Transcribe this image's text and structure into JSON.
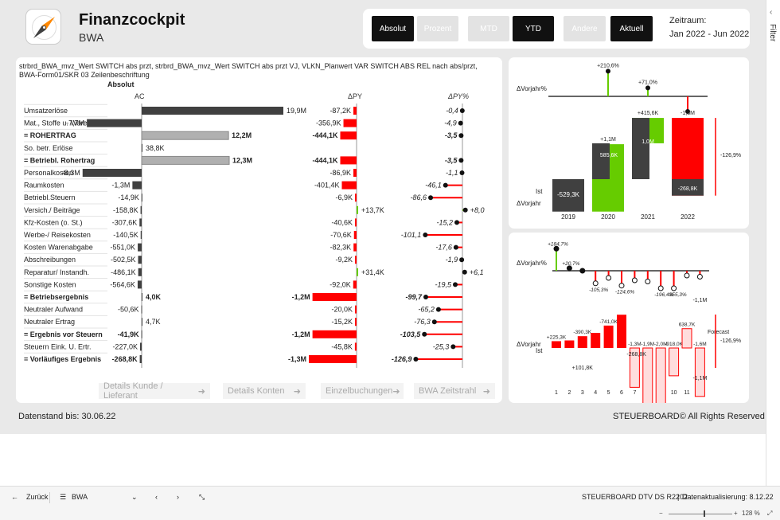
{
  "header": {
    "title": "Finanzcockpit",
    "subtitle": "BWA"
  },
  "buttons": [
    {
      "label": "Absolut",
      "state": "on"
    },
    {
      "label": "Prozent",
      "state": "off"
    },
    {
      "label": "MTD",
      "state": "off"
    },
    {
      "label": "YTD",
      "state": "on"
    },
    {
      "label": "Andere",
      "state": "off"
    },
    {
      "label": "Aktuell",
      "state": "on"
    }
  ],
  "zeitraum": {
    "label": "Zeitraum:",
    "value": "Jan 2022 - Jun 2022"
  },
  "filter_label": "Filter",
  "table": {
    "description": "strbrd_BWA_mvz_Wert SWITCH abs przt, strbrd_BWA_mvz_Wert SWITCH abs przt VJ, VLKN_Planwert VAR SWITCH ABS REL nach abs/przt, BWA-Form01/SKR 03 Zeilenbeschriftung",
    "group_header": "Absolut",
    "columns": {
      "ac": "AC",
      "dpy": "ΔPY",
      "dpyp": "ΔPY%"
    },
    "rows": [
      {
        "label": "Umsatzerlöse",
        "bold": false,
        "ac": 19.9,
        "ac_label": "19,9M",
        "dpy": -87.2,
        "dpy_label": "-87,2K",
        "dpyp": -0.4,
        "dpyp_label": "-0,4"
      },
      {
        "label": "Mat., Stoffe u. Waren",
        "bold": false,
        "ac": -7.7,
        "ac_label": "-7,7M",
        "dpy": -356.9,
        "dpy_label": "-356,9K",
        "dpyp": -4.9,
        "dpyp_label": "-4,9"
      },
      {
        "label": "= ROHERTRAG",
        "bold": true,
        "ac": 12.2,
        "ac_label": "12,2M",
        "dpy": -444.1,
        "dpy_label": "-444,1K",
        "dpyp": -3.5,
        "dpyp_label": "-3,5",
        "subtotal": true
      },
      {
        "label": "So. betr. Erlöse",
        "bold": false,
        "ac": 0.0388,
        "ac_label": "38,8K",
        "dpy": 0,
        "dpy_label": "",
        "dpyp": 0,
        "dpyp_label": ""
      },
      {
        "label": "= Betriebl. Rohertrag",
        "bold": true,
        "ac": 12.3,
        "ac_label": "12,3M",
        "dpy": -444.1,
        "dpy_label": "-444,1K",
        "dpyp": -3.5,
        "dpyp_label": "-3,5",
        "subtotal": true
      },
      {
        "label": "Personalkosten",
        "bold": false,
        "ac": -8.3,
        "ac_label": "-8,3M",
        "dpy": -86.9,
        "dpy_label": "-86,9K",
        "dpyp": -1.1,
        "dpyp_label": "-1,1"
      },
      {
        "label": "Raumkosten",
        "bold": false,
        "ac": -1.3,
        "ac_label": "-1,3M",
        "dpy": -401.4,
        "dpy_label": "-401,4K",
        "dpyp": -46.1,
        "dpyp_label": "-46,1"
      },
      {
        "label": "Betriebl.Steuern",
        "bold": false,
        "ac": -0.0149,
        "ac_label": "-14,9K",
        "dpy": -6.9,
        "dpy_label": "-6,9K",
        "dpyp": -86.6,
        "dpyp_label": "-86,6"
      },
      {
        "label": "Versich./ Beiträge",
        "bold": false,
        "ac": -0.1589,
        "ac_label": "-158,8K",
        "dpy": 13.7,
        "dpy_label": "+13,7K",
        "dpyp": 8.0,
        "dpyp_label": "+8,0"
      },
      {
        "label": "Kfz-Kosten (o. St.)",
        "bold": false,
        "ac": -0.3076,
        "ac_label": "-307,6K",
        "dpy": -40.6,
        "dpy_label": "-40,6K",
        "dpyp": -15.2,
        "dpyp_label": "-15,2"
      },
      {
        "label": "Werbe-/ Reisekosten",
        "bold": false,
        "ac": -0.1405,
        "ac_label": "-140,5K",
        "dpy": -70.6,
        "dpy_label": "-70,6K",
        "dpyp": -101.1,
        "dpyp_label": "-101,1"
      },
      {
        "label": "Kosten Warenabgabe",
        "bold": false,
        "ac": -0.551,
        "ac_label": "-551,0K",
        "dpy": -82.3,
        "dpy_label": "-82,3K",
        "dpyp": -17.6,
        "dpyp_label": "-17,6"
      },
      {
        "label": "Abschreibungen",
        "bold": false,
        "ac": -0.5025,
        "ac_label": "-502,5K",
        "dpy": -9.2,
        "dpy_label": "-9,2K",
        "dpyp": -1.9,
        "dpyp_label": "-1,9"
      },
      {
        "label": "Reparatur/ Instandh.",
        "bold": false,
        "ac": -0.4861,
        "ac_label": "-486,1K",
        "dpy": 31.4,
        "dpy_label": "+31,4K",
        "dpyp": 6.1,
        "dpyp_label": "+6,1"
      },
      {
        "label": "Sonstige Kosten",
        "bold": false,
        "ac": -0.5646,
        "ac_label": "-564,6K",
        "dpy": -92.0,
        "dpy_label": "-92,0K",
        "dpyp": -19.5,
        "dpyp_label": "-19,5"
      },
      {
        "label": "= Betriebsergebnis",
        "bold": true,
        "ac": 0.004,
        "ac_label": "4,0K",
        "dpy": -1200,
        "dpy_label": "-1,2M",
        "dpyp": -99.7,
        "dpyp_label": "-99,7"
      },
      {
        "label": "Neutraler Aufwand",
        "bold": false,
        "ac": -0.0506,
        "ac_label": "-50,6K",
        "dpy": -20.0,
        "dpy_label": "-20,0K",
        "dpyp": -65.2,
        "dpyp_label": "-65,2"
      },
      {
        "label": "Neutraler Ertrag",
        "bold": false,
        "ac": 0.0047,
        "ac_label": "4,7K",
        "dpy": -15.2,
        "dpy_label": "-15,2K",
        "dpyp": -76.3,
        "dpyp_label": "-76,3"
      },
      {
        "label": "= Ergebnis vor Steuern",
        "bold": true,
        "ac": -0.0419,
        "ac_label": "-41,9K",
        "dpy": -1200,
        "dpy_label": "-1,2M",
        "dpyp": -103.5,
        "dpyp_label": "-103,5"
      },
      {
        "label": "Steuern Eink. U. Ertr.",
        "bold": false,
        "ac": -0.227,
        "ac_label": "-227,0K",
        "dpy": -45.8,
        "dpy_label": "-45,8K",
        "dpyp": -25.3,
        "dpyp_label": "-25,3"
      },
      {
        "label": "= Vorläufiges Ergebnis",
        "bold": true,
        "ac": -0.2688,
        "ac_label": "-268,8K",
        "dpy": -1300,
        "dpy_label": "-1,3M",
        "dpyp": -126.9,
        "dpyp_label": "-126,9"
      }
    ]
  },
  "nav_buttons": [
    {
      "label": "Details Kunde / Lieferant"
    },
    {
      "label": "Details Konten"
    },
    {
      "label": "Einzelbuchungen"
    },
    {
      "label": "BWA Zeitstrahl"
    }
  ],
  "chart_data": [
    {
      "type": "bar",
      "title": "",
      "categories": [
        "2019",
        "2020",
        "2021",
        "2022"
      ],
      "row_labels": {
        "top": "ΔVorjahr%",
        "ist": "Ist",
        "bottom": "ΔVorjahr"
      },
      "ist_values": [
        -529.3,
        585.6,
        1000,
        -268.8
      ],
      "ist_labels": [
        "-529,3K",
        "585,6K",
        "1,0M",
        "-268,8K"
      ],
      "delta_values": [
        null,
        1100,
        415.6,
        -1300
      ],
      "delta_labels": [
        "",
        "+1,1M",
        "+415,6K",
        "-1,3M"
      ],
      "delta_pct": [
        null,
        210.6,
        71.0,
        -126.9
      ],
      "delta_pct_labels": [
        "",
        "+210,6%",
        "+71,0%",
        "-126,9%"
      ],
      "side_label": "-126,9%",
      "colors": {
        "actual": "#404040",
        "positive": "#66cc00",
        "negative": "#ff0000"
      }
    },
    {
      "type": "bar",
      "title": "",
      "categories": [
        "1",
        "2",
        "3",
        "4",
        "5",
        "6",
        "7",
        "8",
        "9",
        "10",
        "11",
        "12"
      ],
      "row_labels": {
        "top": "ΔVorjahr%",
        "bottom": "ΔVorjahr",
        "ist": "Ist"
      },
      "pct_labels": [
        "+184,7%",
        "+20,7%",
        "",
        "-105,3%",
        "",
        "-124,6%",
        "",
        "",
        "-196,4%",
        "-355,3%",
        "",
        ""
      ],
      "pct_values": [
        184.7,
        20.7,
        0,
        -105.3,
        -60,
        -124.6,
        -80,
        -90,
        -196.4,
        -355.3,
        -40,
        -50
      ],
      "cum_labels": [
        "+225,3K",
        "",
        "-390,3K",
        "",
        "-741,0K",
        "",
        "-1,3M",
        "-1,9M",
        "-2,0M",
        "-918,0K",
        "638,7K",
        "-1,6M"
      ],
      "extra_labels": {
        "m3_delta": "+101,8K",
        "m6": "-268,8K",
        "m12_top": "-1,1M",
        "m12_low": "-1,1M",
        "forecast": "Forecast",
        "side": "-126,9%"
      },
      "colors": {
        "actual": "#404040",
        "positive": "#66cc00",
        "negative": "#ff0000"
      }
    }
  ],
  "footer": {
    "stand": "Datenstand bis:  30.06.22",
    "copyright": "STEUERBOARD© All Rights Reserved"
  },
  "bottombar": {
    "back": "Zurück",
    "page": "BWA",
    "report": "STEUERBOARD DTV DS R2202 ...",
    "refresh": "Datenaktualisierung: 8.12.22"
  },
  "statusbar": {
    "zoom": "128 %"
  }
}
